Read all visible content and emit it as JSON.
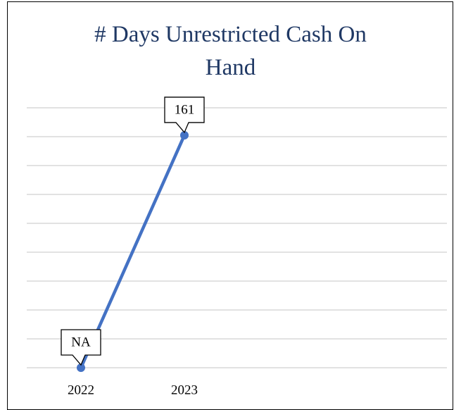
{
  "chart_data": {
    "type": "line",
    "title": "# Days Unrestricted Cash On Hand",
    "categories": [
      "2022",
      "2023"
    ],
    "series": [
      {
        "name": "# Days Unrestricted Cash On Hand",
        "color": "#4472c4",
        "values": [
          0,
          161
        ],
        "value_labels": [
          "NA",
          "161"
        ]
      }
    ],
    "ylim": [
      0,
      180
    ],
    "yticks": [
      0,
      20,
      40,
      60,
      80,
      100,
      120,
      140,
      160,
      180
    ],
    "grid": true
  }
}
